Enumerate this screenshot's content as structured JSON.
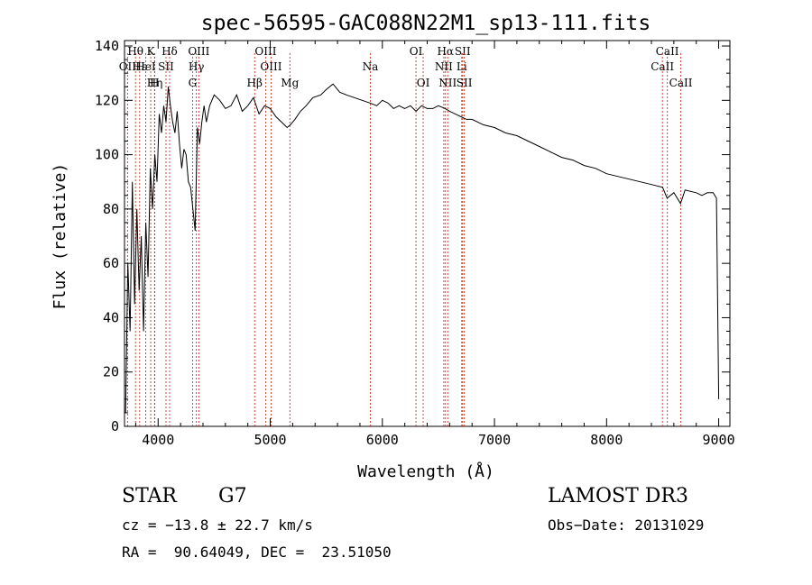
{
  "chart_data": {
    "type": "line",
    "title": "spec-56595-GAC088N22M1_sp13-111.fits",
    "xlabel": "Wavelength (Å)",
    "ylabel": "Flux (relative)",
    "xlim": [
      3700,
      9100
    ],
    "ylim": [
      0,
      142
    ],
    "xticks": [
      4000,
      5000,
      6000,
      7000,
      8000,
      9000
    ],
    "yticks": [
      0,
      20,
      40,
      60,
      80,
      100,
      120,
      140
    ],
    "xtick_labels": [
      "4000",
      "5000",
      "6000",
      "7000",
      "8000",
      "9000"
    ],
    "ytick_labels": [
      "0",
      "20",
      "40",
      "60",
      "80",
      "100",
      "120",
      "140"
    ],
    "line_color": "#000000",
    "marker_color": "#c0392b",
    "series": [
      {
        "name": "spectrum",
        "x": [
          3710,
          3730,
          3750,
          3770,
          3790,
          3810,
          3830,
          3850,
          3870,
          3890,
          3910,
          3930,
          3950,
          3970,
          3990,
          4010,
          4030,
          4050,
          4070,
          4090,
          4110,
          4130,
          4150,
          4170,
          4190,
          4210,
          4230,
          4250,
          4270,
          4290,
          4310,
          4330,
          4350,
          4370,
          4390,
          4410,
          4430,
          4460,
          4500,
          4550,
          4600,
          4650,
          4700,
          4750,
          4800,
          4850,
          4900,
          4950,
          5000,
          5050,
          5100,
          5150,
          5180,
          5220,
          5270,
          5320,
          5380,
          5450,
          5500,
          5560,
          5580,
          5620,
          5680,
          5750,
          5820,
          5890,
          5950,
          6000,
          6050,
          6100,
          6150,
          6200,
          6250,
          6300,
          6350,
          6400,
          6450,
          6500,
          6560,
          6600,
          6650,
          6700,
          6750,
          6800,
          6900,
          7000,
          7100,
          7200,
          7300,
          7400,
          7500,
          7600,
          7700,
          7800,
          7900,
          8000,
          8100,
          8200,
          8300,
          8400,
          8500,
          8540,
          8600,
          8660,
          8700,
          8800,
          8850,
          8900,
          8950,
          8980,
          9000
        ],
        "y": [
          5,
          60,
          35,
          90,
          45,
          80,
          50,
          70,
          35,
          75,
          55,
          95,
          80,
          100,
          90,
          115,
          108,
          118,
          112,
          125,
          118,
          112,
          108,
          116,
          104,
          95,
          102,
          100,
          90,
          88,
          80,
          72,
          110,
          104,
          112,
          118,
          112,
          118,
          122,
          120,
          117,
          118,
          122,
          116,
          118,
          121,
          115,
          118,
          117,
          114,
          112,
          110,
          111,
          113,
          116,
          118,
          121,
          122,
          124,
          126,
          125,
          123,
          122,
          121,
          120,
          119,
          118,
          120,
          119,
          117,
          118,
          117,
          118,
          116,
          118,
          117,
          117,
          118,
          117,
          116,
          115,
          114,
          113,
          113,
          111,
          110,
          108,
          107,
          105,
          103,
          101,
          99,
          98,
          96,
          95,
          93,
          92,
          91,
          90,
          89,
          88,
          84,
          86,
          82,
          87,
          86,
          85,
          86,
          86,
          84,
          10
        ]
      }
    ],
    "line_markers": [
      {
        "label": "Hθ",
        "x": 3798,
        "row": 1
      },
      {
        "label": "OII",
        "x": 3727,
        "row": 2
      },
      {
        "label": "Hε",
        "x": 3835,
        "row": 2
      },
      {
        "label": "K",
        "x": 3934,
        "row": 1
      },
      {
        "label": "HeI",
        "x": 3889,
        "row": 2
      },
      {
        "label": "Hη",
        "x": 3970,
        "row": 3
      },
      {
        "label": "Hδ",
        "x": 4102,
        "row": 1
      },
      {
        "label": "SII",
        "x": 4070,
        "row": 2
      },
      {
        "label": "H",
        "x": 3968,
        "row": 3
      },
      {
        "label": "OIII",
        "x": 4363,
        "row": 1
      },
      {
        "label": "Hγ",
        "x": 4341,
        "row": 2
      },
      {
        "label": "G",
        "x": 4307,
        "row": 3
      },
      {
        "label": "OIII",
        "x": 4959,
        "row": 1
      },
      {
        "label": "OIII",
        "x": 5007,
        "row": 2
      },
      {
        "label": "Hβ",
        "x": 4861,
        "row": 3
      },
      {
        "label": "Mg",
        "x": 5175,
        "row": 3
      },
      {
        "label": "Na",
        "x": 5893,
        "row": 2
      },
      {
        "label": "OI",
        "x": 6300,
        "row": 1
      },
      {
        "label": "OI",
        "x": 6364,
        "row": 3
      },
      {
        "label": "Hα",
        "x": 6563,
        "row": 1
      },
      {
        "label": "SII",
        "x": 6716,
        "row": 1
      },
      {
        "label": "NII",
        "x": 6548,
        "row": 2
      },
      {
        "label": "Li",
        "x": 6708,
        "row": 2
      },
      {
        "label": "NII",
        "x": 6583,
        "row": 3
      },
      {
        "label": "SII",
        "x": 6731,
        "row": 3
      },
      {
        "label": "CaII",
        "x": 8542,
        "row": 1
      },
      {
        "label": "CaII",
        "x": 8498,
        "row": 2
      },
      {
        "label": "CaII",
        "x": 8662,
        "row": 3
      }
    ]
  },
  "info": {
    "class": "STAR",
    "subclass": "G7",
    "survey": "LAMOST DR3",
    "cz": "cz = −13.8 ± 22.7 km/s",
    "obs_date": "Obs−Date: 20131029",
    "coords": "RA =  90.64049, DEC =  23.51050"
  }
}
